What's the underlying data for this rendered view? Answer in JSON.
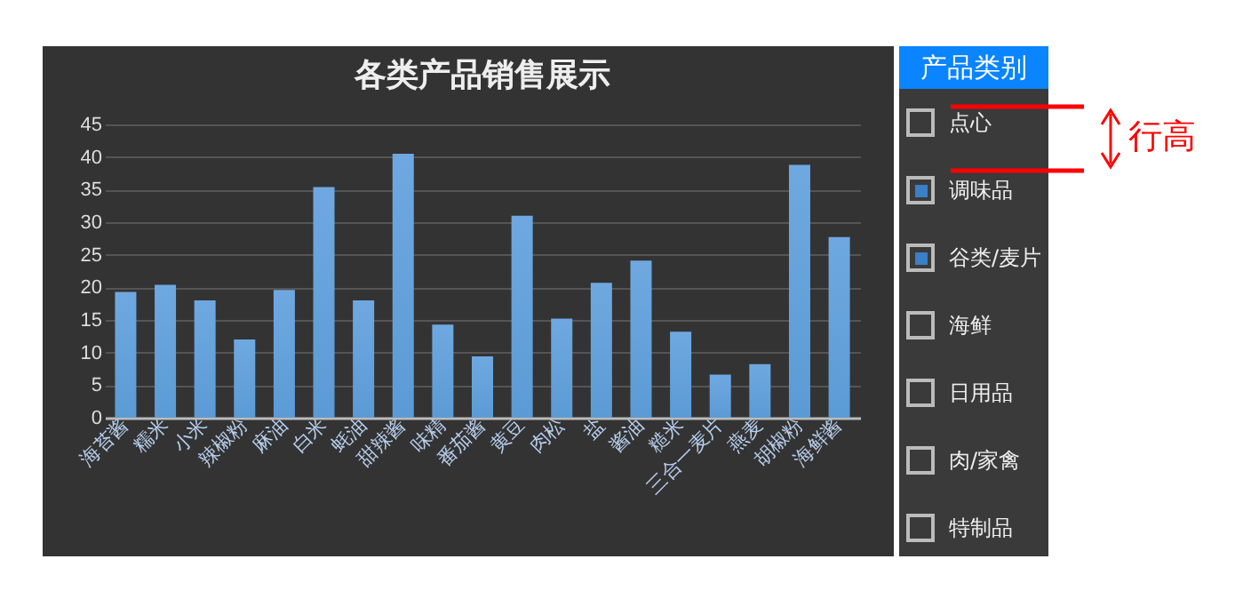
{
  "chart_data": [
    {
      "type": "bar",
      "title": "各类产品销售展示",
      "categories": [
        "海苔酱",
        "糯米",
        "小米",
        "辣椒粉",
        "麻油",
        "白米",
        "蚝油",
        "甜辣酱",
        "味精",
        "番茄酱",
        "黄豆",
        "肉松",
        "盐",
        "酱油",
        "糙米",
        "三合一麦片",
        "燕麦",
        "胡椒粉",
        "海鲜酱"
      ],
      "values": [
        19.3,
        20.4,
        18.0,
        12.0,
        19.6,
        35.4,
        18.0,
        40.5,
        14.3,
        9.4,
        31.0,
        15.2,
        20.7,
        24.1,
        13.2,
        6.6,
        8.2,
        38.8,
        27.7
      ],
      "color": "#5b9bd5",
      "ylim": [
        0,
        45
      ],
      "yticks": [
        0,
        5,
        10,
        15,
        20,
        25,
        30,
        35,
        40,
        45
      ],
      "grid": "y"
    },
    {
      "type": "other",
      "title": "产品类别",
      "categories": [
        "点心",
        "调味品",
        "谷类/麦片",
        "海鲜",
        "日用品",
        "肉/家禽",
        "特制品"
      ],
      "annotations": [
        "行高"
      ]
    }
  ]
}
